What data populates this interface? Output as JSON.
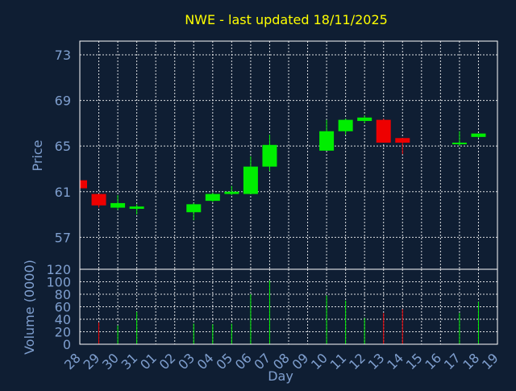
{
  "chart_data": {
    "type": "candlestick",
    "title": "NWE - last updated 18/11/2025",
    "xlabel": "Day",
    "ylabel_price": "Price",
    "ylabel_volume": "Volume (0000)",
    "price_ylim": [
      54.2,
      74.2
    ],
    "price_ticks": [
      57,
      61,
      65,
      69,
      73
    ],
    "volume_ylim": [
      0,
      120
    ],
    "volume_ticks": [
      0,
      20,
      40,
      60,
      80,
      100,
      120
    ],
    "x_tick_labels": [
      "28",
      "29",
      "30",
      "31",
      "01",
      "02",
      "03",
      "04",
      "05",
      "06",
      "07",
      "08",
      "09",
      "10",
      "11",
      "12",
      "13",
      "14",
      "15",
      "16",
      "17",
      "18",
      "19"
    ],
    "grid": true,
    "candles": [
      {
        "day": "28",
        "open": 62.0,
        "high": 62.0,
        "low": 61.3,
        "close": 61.3,
        "volume": 0
      },
      {
        "day": "29",
        "open": 60.8,
        "high": 60.8,
        "low": 59.6,
        "close": 59.8,
        "volume": 35
      },
      {
        "day": "30",
        "open": 59.6,
        "high": 60.7,
        "low": 59.4,
        "close": 60.0,
        "volume": 30
      },
      {
        "day": "31",
        "open": 59.5,
        "high": 59.9,
        "low": 59.0,
        "close": 59.7,
        "volume": 52
      },
      {
        "day": "03",
        "open": 59.2,
        "high": 60.0,
        "low": 58.5,
        "close": 59.9,
        "volume": 33
      },
      {
        "day": "04",
        "open": 60.2,
        "high": 60.9,
        "low": 60.1,
        "close": 60.8,
        "volume": 32
      },
      {
        "day": "05",
        "open": 60.8,
        "high": 61.5,
        "low": 60.7,
        "close": 61.0,
        "volume": 33
      },
      {
        "day": "06",
        "open": 60.8,
        "high": 64.1,
        "low": 60.8,
        "close": 63.2,
        "volume": 80
      },
      {
        "day": "07",
        "open": 63.2,
        "high": 66.0,
        "low": 62.8,
        "close": 65.1,
        "volume": 102
      },
      {
        "day": "10",
        "open": 64.6,
        "high": 67.3,
        "low": 64.6,
        "close": 66.3,
        "volume": 78
      },
      {
        "day": "11",
        "open": 66.3,
        "high": 67.4,
        "low": 66.0,
        "close": 67.3,
        "volume": 70
      },
      {
        "day": "12",
        "open": 67.2,
        "high": 67.7,
        "low": 67.0,
        "close": 67.5,
        "volume": 42
      },
      {
        "day": "13",
        "open": 67.3,
        "high": 67.4,
        "low": 65.3,
        "close": 65.3,
        "volume": 50
      },
      {
        "day": "14",
        "open": 65.7,
        "high": 65.7,
        "low": 64.3,
        "close": 65.3,
        "volume": 56
      },
      {
        "day": "17",
        "open": 65.2,
        "high": 66.3,
        "low": 65.0,
        "close": 65.3,
        "volume": 50
      },
      {
        "day": "18",
        "open": 65.8,
        "high": 66.1,
        "low": 65.7,
        "close": 66.1,
        "volume": 68
      }
    ]
  },
  "colors": {
    "background": "#0f1e33",
    "title": "#ffff00",
    "axis_text": "#7f9fcf",
    "grid": "#ffffff",
    "frame": "#ffffff",
    "up": "#00ee00",
    "down": "#ee0000"
  }
}
